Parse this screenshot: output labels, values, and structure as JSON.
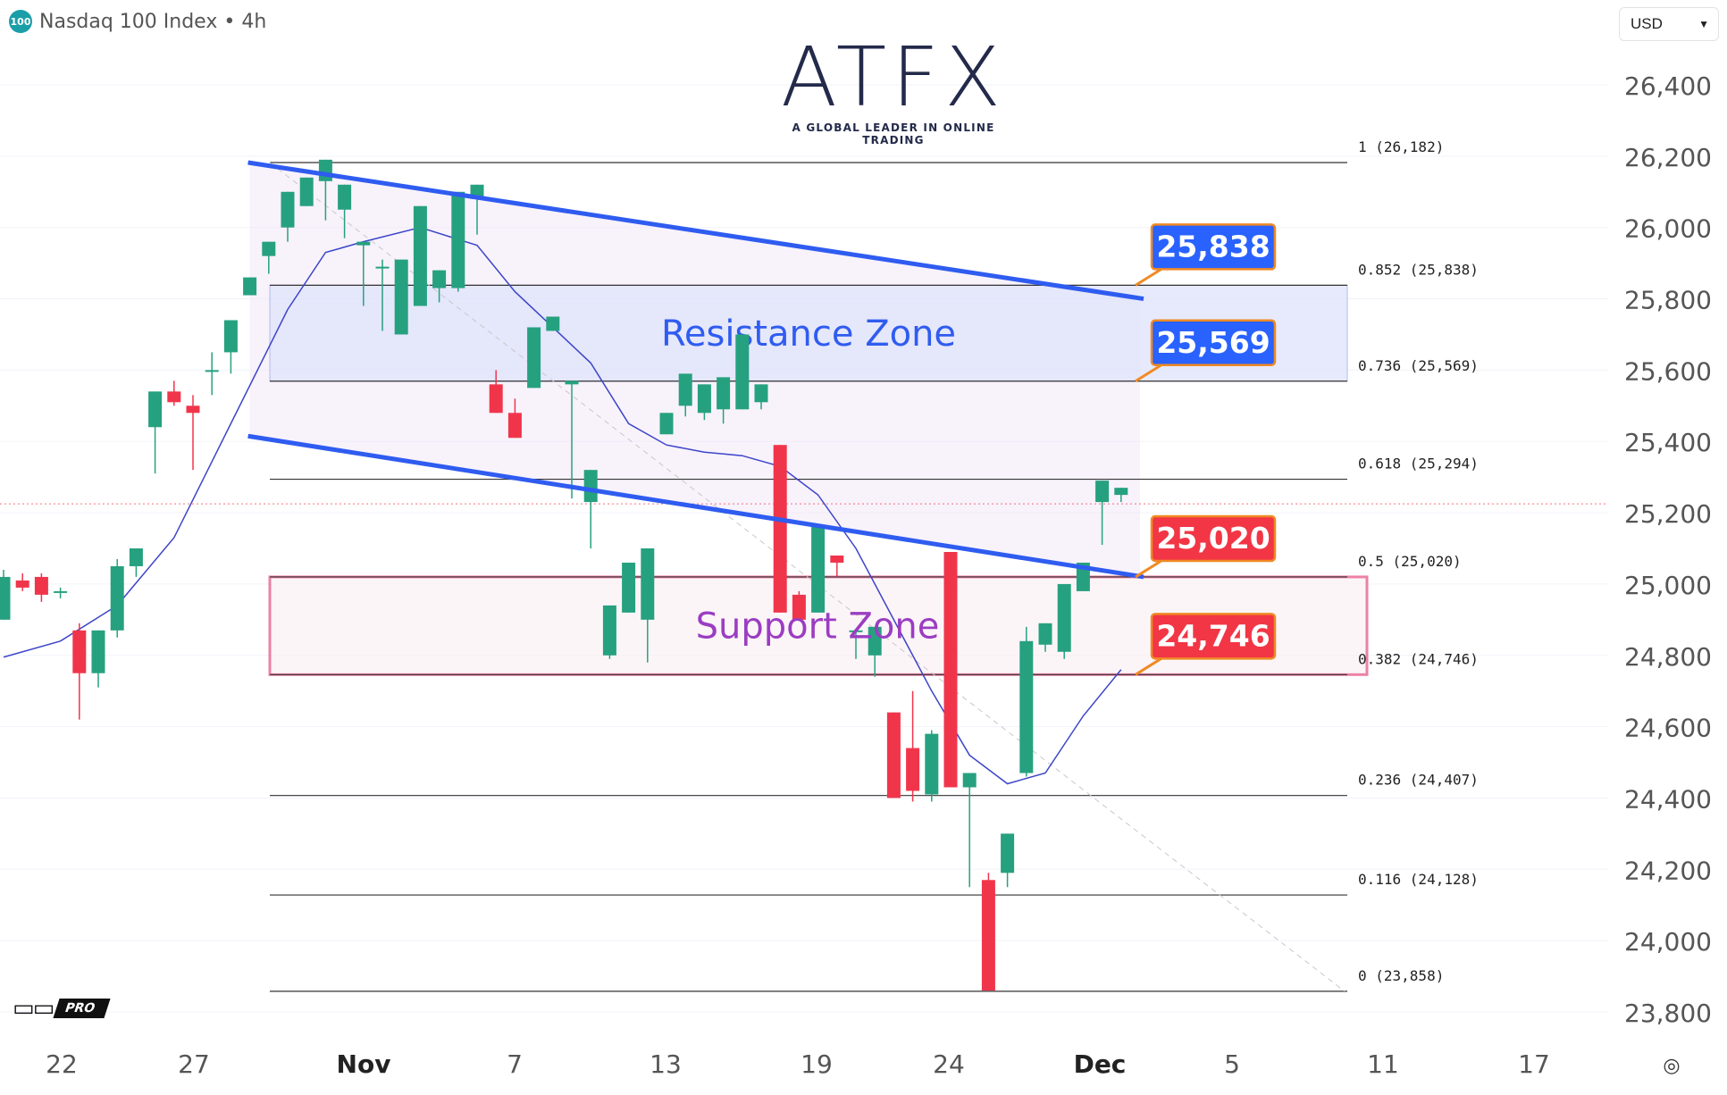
{
  "header": {
    "badge": "100",
    "title": "Nasdaq 100 Index • 4h",
    "currency": "USD"
  },
  "brand": {
    "name": "ATFX",
    "tagline": "A GLOBAL LEADER IN ONLINE TRADING",
    "tv_badge": "PRO"
  },
  "icons": {
    "settings": "settings-icon",
    "dropdown": "chevron-down-icon"
  },
  "chart_data": {
    "type": "candlestick",
    "title": "Nasdaq 100 Index • 4h",
    "y_ticks": [
      "26,400",
      "26,200",
      "26,000",
      "25,800",
      "25,600",
      "25,400",
      "25,200",
      "25,000",
      "24,800",
      "24,600",
      "24,400",
      "24,200",
      "24,000",
      "23,800"
    ],
    "x_ticks": [
      "22",
      "27",
      "Nov",
      "7",
      "13",
      "19",
      "24",
      "Dec",
      "5",
      "11",
      "17"
    ],
    "ylim": [
      23790,
      26520
    ],
    "grid": true,
    "colors": {
      "up": "#26a17f",
      "down": "#f0354b",
      "trend": "#2f5cf0",
      "ma": "#3c45c8",
      "resistance": "#2f5cf0",
      "support": "#e0306b"
    },
    "candles": [
      [
        24900,
        25040,
        24900,
        25020
      ],
      [
        25010,
        25030,
        24980,
        24990
      ],
      [
        25020,
        25030,
        24950,
        24970
      ],
      [
        24980,
        24990,
        24960,
        24980
      ],
      [
        24870,
        24890,
        24620,
        24750
      ],
      [
        24750,
        24780,
        24710,
        24870
      ],
      [
        24870,
        25070,
        24850,
        25050
      ],
      [
        25050,
        25090,
        25020,
        25100
      ],
      [
        25440,
        25470,
        25310,
        25540
      ],
      [
        25540,
        25570,
        25500,
        25510
      ],
      [
        25500,
        25530,
        25320,
        25480
      ],
      [
        25600,
        25650,
        25530,
        25600
      ],
      [
        25650,
        25700,
        25590,
        25740
      ],
      [
        25810,
        25840,
        25850,
        25860
      ],
      [
        25920,
        25930,
        25870,
        25960
      ],
      [
        26000,
        26020,
        25960,
        26100
      ],
      [
        26060,
        26110,
        26060,
        26140
      ],
      [
        26130,
        26150,
        26020,
        26190
      ],
      [
        26050,
        26040,
        25970,
        26120
      ],
      [
        25950,
        25950,
        25780,
        25960
      ],
      [
        25890,
        25710,
        25910,
        25890
      ],
      [
        25700,
        25780,
        25770,
        25910
      ],
      [
        25780,
        25820,
        25960,
        26060
      ],
      [
        25830,
        25790,
        25830,
        25880
      ],
      [
        25830,
        26080,
        25820,
        26100
      ],
      [
        26080,
        25990,
        25980,
        26120
      ],
      [
        25560,
        25490,
        25600,
        25480
      ],
      [
        25480,
        25430,
        25520,
        25410
      ],
      [
        25550,
        25560,
        25720,
        25720
      ],
      [
        25710,
        25720,
        25730,
        25750
      ],
      [
        25560,
        25320,
        25240,
        25570
      ],
      [
        25230,
        25160,
        25100,
        25320
      ],
      [
        24800,
        24920,
        24790,
        24940
      ],
      [
        24920,
        25050,
        24920,
        25060
      ],
      [
        24900,
        25050,
        24780,
        25100
      ],
      [
        25420,
        25480,
        25450,
        25480
      ],
      [
        25500,
        25470,
        25560,
        25590
      ],
      [
        25480,
        25510,
        25460,
        25560
      ],
      [
        25490,
        25520,
        25450,
        25580
      ],
      [
        25490,
        25640,
        25680,
        25700
      ],
      [
        25510,
        25490,
        25520,
        25560
      ],
      [
        25390,
        24970,
        25350,
        24920
      ],
      [
        24970,
        24910,
        24980,
        24900
      ],
      [
        24920,
        25100,
        24990,
        25160
      ],
      [
        25080,
        25020,
        25040,
        25060
      ],
      [
        24870,
        24790,
        24800,
        24870
      ],
      [
        24800,
        24860,
        24740,
        24880
      ],
      [
        24640,
        24400,
        24610,
        24400
      ],
      [
        24540,
        24390,
        24700,
        24420
      ],
      [
        24410,
        24390,
        24590,
        24580
      ],
      [
        25090,
        24550,
        25050,
        24430
      ],
      [
        24430,
        24180,
        24150,
        24470
      ],
      [
        24170,
        23880,
        24190,
        23860
      ],
      [
        24190,
        24240,
        24150,
        24300
      ],
      [
        24470,
        24880,
        24460,
        24840
      ],
      [
        24830,
        24810,
        24840,
        24890
      ],
      [
        24810,
        24980,
        24790,
        25000
      ],
      [
        24980,
        25020,
        24990,
        25060
      ],
      [
        25230,
        25110,
        25270,
        25290
      ],
      [
        25250,
        25230,
        25240,
        25270
      ]
    ],
    "moving_average": [
      [
        0,
        24795
      ],
      [
        3,
        24840
      ],
      [
        6,
        24940
      ],
      [
        9,
        25130
      ],
      [
        12,
        25450
      ],
      [
        15,
        25770
      ],
      [
        17,
        25930
      ],
      [
        19,
        25960
      ],
      [
        22,
        26000
      ],
      [
        25,
        25950
      ],
      [
        27,
        25820
      ],
      [
        29,
        25720
      ],
      [
        31,
        25620
      ],
      [
        33,
        25450
      ],
      [
        35,
        25390
      ],
      [
        37,
        25370
      ],
      [
        39,
        25360
      ],
      [
        41,
        25330
      ],
      [
        43,
        25250
      ],
      [
        45,
        25100
      ],
      [
        47,
        24900
      ],
      [
        49,
        24700
      ],
      [
        51,
        24520
      ],
      [
        53,
        24440
      ],
      [
        55,
        24470
      ],
      [
        57,
        24630
      ],
      [
        59,
        24760
      ]
    ],
    "trendlines": [
      {
        "name": "upper",
        "from": [
          13,
          26182
        ],
        "to": [
          60,
          25800
        ]
      },
      {
        "name": "lower",
        "from": [
          13,
          25415
        ],
        "to": [
          60,
          25020
        ]
      }
    ],
    "zones": [
      {
        "label": "Resistance Zone",
        "low": 25569,
        "high": 25838
      },
      {
        "label": "Support Zone",
        "low": 24746,
        "high": 25020
      }
    ],
    "fib_levels": [
      {
        "label": "1 (26,182)",
        "value": 26182
      },
      {
        "label": "0.852 (25,838)",
        "value": 25838
      },
      {
        "label": "0.736 (25,569)",
        "value": 25569
      },
      {
        "label": "0.618 (25,294)",
        "value": 25294
      },
      {
        "label": "0.5 (25,020)",
        "value": 25020
      },
      {
        "label": "0.382 (24,746)",
        "value": 24746
      },
      {
        "label": "0.236 (24,407)",
        "value": 24407
      },
      {
        "label": "0.116 (24,128)",
        "value": 24128
      },
      {
        "label": "0 (23,858)",
        "value": 23858
      }
    ],
    "callouts": [
      {
        "text": "25,838",
        "value": 25838,
        "color": "#2962ff"
      },
      {
        "text": "25,569",
        "value": 25569,
        "color": "#2962ff"
      },
      {
        "text": "25,020",
        "value": 25020,
        "color": "#f23645"
      },
      {
        "text": "24,746",
        "value": 24746,
        "color": "#f23645"
      }
    ],
    "current_price": 25225
  }
}
